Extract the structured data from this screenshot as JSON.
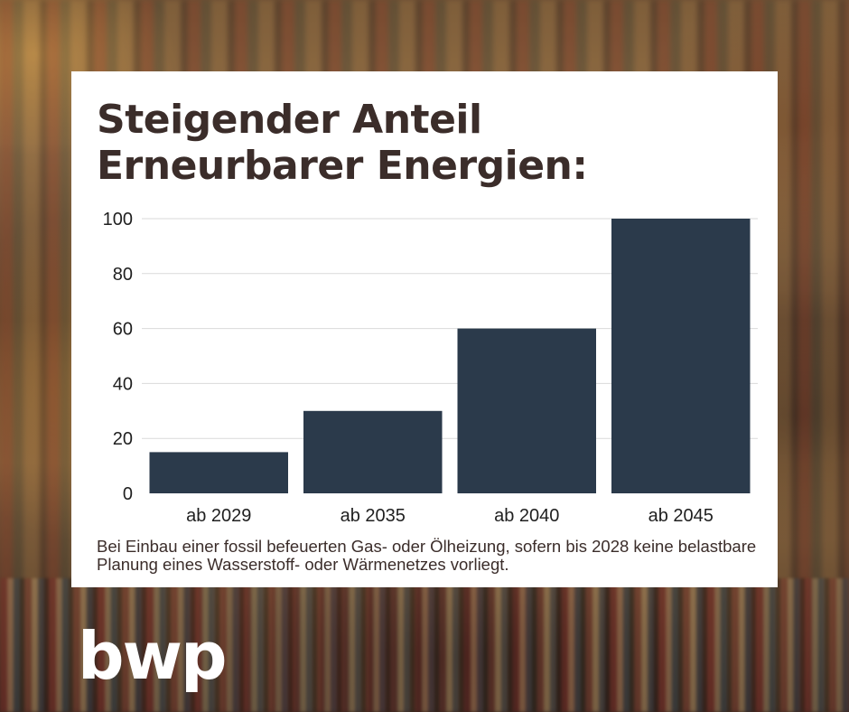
{
  "logo": {
    "text": "bwp"
  },
  "footnote": "Bei Einbau einer fossil befeuerten Gas- oder Ölheizung, sofern bis 2028 keine belastbare Planung eines Wasserstoff- oder Wärmenetzes vorliegt.",
  "colors": {
    "bar": "#2b3a4b",
    "title": "#3b2d2a",
    "grid": "#d9d9d9"
  },
  "chart_data": {
    "type": "bar",
    "title": "Steigender Anteil\nErneurbarer Energien:",
    "categories": [
      "ab 2029",
      "ab 2035",
      "ab 2040",
      "ab 2045"
    ],
    "values": [
      15,
      30,
      60,
      100
    ],
    "yticks": [
      0,
      20,
      40,
      60,
      80,
      100
    ],
    "ylim": [
      0,
      100
    ],
    "xlabel": "",
    "ylabel": "",
    "grid": true
  }
}
